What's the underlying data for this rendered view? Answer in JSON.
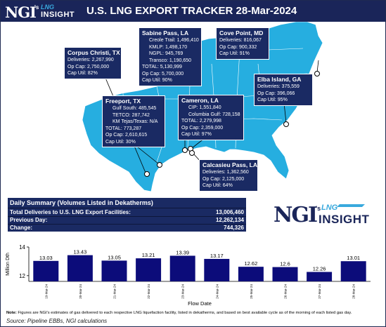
{
  "header": {
    "logo_ngi": "NGI",
    "logo_sup": "'s",
    "logo_lng": "LNG",
    "logo_insight": "INSIGHT",
    "title": "U.S. LNG EXPORT TRACKER 28-Mar-2024"
  },
  "colors": {
    "navy": "#1a2a63",
    "bar": "#0c0c7a",
    "map_fill": "#26aee0",
    "accent": "#39a9dd"
  },
  "facilities": {
    "corpus": {
      "name": "Corpus Christi, TX",
      "lines": [
        "Deliveries: 2,267,990",
        "Op Cap: 2,750,000",
        "Cap Util: 82%"
      ]
    },
    "sabine": {
      "name": "Sabine Pass, LA",
      "sublines": [
        "Creole Trail: 1,496,410",
        "KMLP: 1,498,170",
        "NGPL: 945,769",
        "Transco: 1,190,650"
      ],
      "lines": [
        "TOTAL: 5,130,999",
        "Op Cap: 5,700,000",
        "Cap Util: 90%"
      ]
    },
    "cove": {
      "name": "Cove Point, MD",
      "lines": [
        "Deliveries: 816,067",
        "Op Cap: 900,332",
        "Cap Util: 91%"
      ]
    },
    "elba": {
      "name": "Elba Island, GA",
      "lines": [
        "Deliveries: 375,559",
        "Op Cap: 396,066",
        "Cap Util: 95%"
      ]
    },
    "freeport": {
      "name": "Freeport, TX",
      "sublines": [
        "Gulf South: 485,545",
        "TETCO: 287,742",
        "KM Tejas/Texas: N/A"
      ],
      "lines": [
        "TOTAL: 773,287",
        "Op Cap: 2,610,615",
        "Cap Util: 30%"
      ]
    },
    "cameron": {
      "name": "Cameron, LA",
      "sublines": [
        "CIP: 1,551,840",
        "Columbia Gulf: 728,158"
      ],
      "lines": [
        "TOTAL: 2,279,998",
        "Op Cap: 2,359,000",
        "Cap Util: 97%"
      ]
    },
    "calcasieu": {
      "name": "Calcasieu Pass, LA",
      "lines": [
        "Deliveries: 1,362,560",
        "Op Cap: 2,125,000",
        "Cap Util: 64%"
      ]
    }
  },
  "summary": {
    "heading": "Daily Summary (Volumes Listed in Dekatherms)",
    "rows": [
      {
        "label": "Total Deliveries to U.S. LNG Export Facilities:",
        "value": "13,006,460"
      },
      {
        "label": "Previous Day:",
        "value": "12,262,134"
      },
      {
        "label": "Change:",
        "value": "744,326"
      }
    ]
  },
  "logo2": {
    "ngi": "NGI",
    "sup": "'s",
    "lng": "LNG",
    "insight": "INSIGHT"
  },
  "chart_data": {
    "type": "bar",
    "categories": [
      "19-Mar-24",
      "20-Mar-24",
      "21-Mar-24",
      "22-Mar-24",
      "23-Mar-24",
      "24-Mar-24",
      "25-Mar-24",
      "26-Mar-24",
      "27-Mar-24",
      "28-Mar-24"
    ],
    "values": [
      13.03,
      13.43,
      13.05,
      13.21,
      13.39,
      13.17,
      12.62,
      12.6,
      12.26,
      13.01
    ],
    "value_labels": [
      "13.03",
      "13.43",
      "13.05",
      "13.21",
      "13.39",
      "13.17",
      "12.62",
      "12.6",
      "12.26",
      "13.01"
    ],
    "title": "",
    "xlabel": "Flow Date",
    "ylabel": "Million Dth",
    "ylim": [
      11.6,
      14.0
    ],
    "yticks": [
      "12",
      "14"
    ],
    "grid": false
  },
  "footer": {
    "note_bold": "Note:",
    "note": " Figures are NGI's estimates of gas delivered to each respective LNG liquefaction facility, listed in dekatherms, and based on best available cycle as of the morning of each listed gas day.",
    "source": "Source: Pipeline EBBs, NGI calculations"
  }
}
